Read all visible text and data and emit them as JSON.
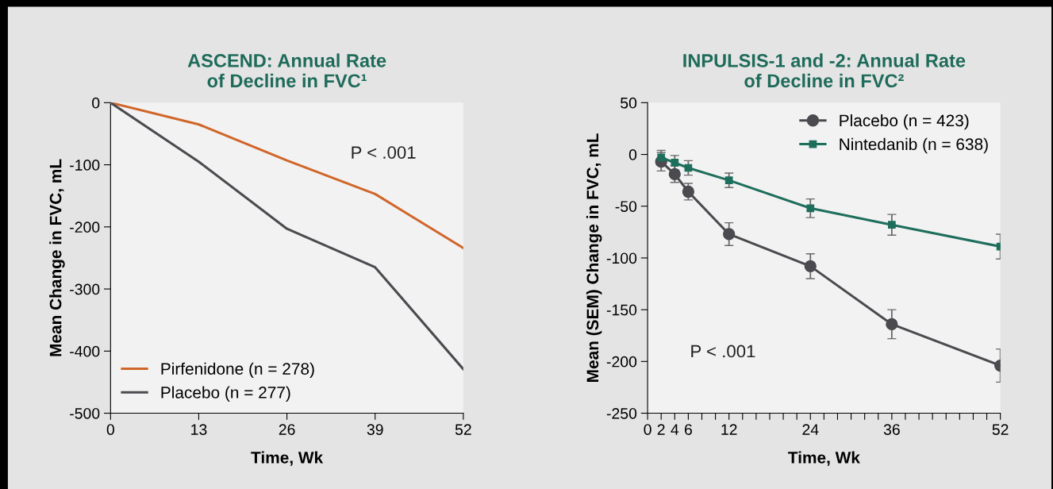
{
  "chart_data": [
    {
      "type": "line",
      "title": "ASCEND: Annual Rate\nof Decline in FVC¹",
      "xlabel": "Time, Wk",
      "ylabel": "Mean Change in FVC, mL",
      "x": [
        0,
        13,
        26,
        39,
        52
      ],
      "xlim": [
        0,
        52
      ],
      "xticks": [
        0,
        13,
        26,
        39,
        52
      ],
      "ylim": [
        -500,
        0
      ],
      "yticks": [
        -500,
        -400,
        -300,
        -200,
        -100,
        0
      ],
      "grid": false,
      "legend": "bottom left",
      "marker": "none",
      "annotations": [
        "P < .001"
      ],
      "series": [
        {
          "name": "Pirfenidone (n = 278)",
          "color": "#d0662a",
          "values": [
            0,
            -35,
            -93,
            -147,
            -234
          ]
        },
        {
          "name": "Placebo (n = 277)",
          "color": "#4a4a4f",
          "values": [
            0,
            -95,
            -203,
            -265,
            -429
          ]
        }
      ]
    },
    {
      "type": "line",
      "title": "INPULSIS-1 and -2: Annual Rate\nof Decline in FVC²",
      "xlabel": "Time, Wk",
      "ylabel": "Mean (SEM) Change in FVC, mL",
      "x": [
        2,
        4,
        6,
        12,
        24,
        36,
        52
      ],
      "xlim": [
        0,
        52
      ],
      "xticks": [
        0,
        2,
        4,
        6,
        {
          "value": 8,
          "label": null
        },
        {
          "value": 10,
          "label": null
        },
        12,
        {
          "value": 14,
          "label": null
        },
        {
          "value": 16,
          "label": null
        },
        {
          "value": 18,
          "label": null
        },
        {
          "value": 20,
          "label": null
        },
        {
          "value": 22,
          "label": null
        },
        24,
        {
          "value": 26,
          "label": null
        },
        {
          "value": 28,
          "label": null
        },
        {
          "value": 30,
          "label": null
        },
        {
          "value": 32,
          "label": null
        },
        {
          "value": 34,
          "label": null
        },
        36,
        {
          "value": 38,
          "label": null
        },
        {
          "value": 40,
          "label": null
        },
        {
          "value": 42,
          "label": null
        },
        {
          "value": 44,
          "label": null
        },
        {
          "value": 46,
          "label": null
        },
        {
          "value": 48,
          "label": null
        },
        {
          "value": 50,
          "label": null
        },
        52
      ],
      "ylim": [
        -250,
        50
      ],
      "yticks": [
        -250,
        -200,
        -150,
        -100,
        -50,
        0,
        50
      ],
      "grid": false,
      "legend": "top right",
      "annotations": [
        "P < .001"
      ],
      "series": [
        {
          "name": "Placebo (n = 423)",
          "color": "#4a4a4f",
          "marker": "circle",
          "values": [
            -7,
            -19,
            -36,
            -77,
            -108,
            -164,
            -204
          ],
          "errors": [
            9,
            8,
            8,
            11,
            12,
            14,
            16
          ]
        },
        {
          "name": "Nintedanib (n = 638)",
          "color": "#1e6e5c",
          "marker": "square",
          "values": [
            -3,
            -8,
            -13,
            -25,
            -52,
            -68,
            -89
          ],
          "errors": [
            7,
            7,
            7,
            7,
            9,
            10,
            12
          ]
        }
      ]
    }
  ]
}
